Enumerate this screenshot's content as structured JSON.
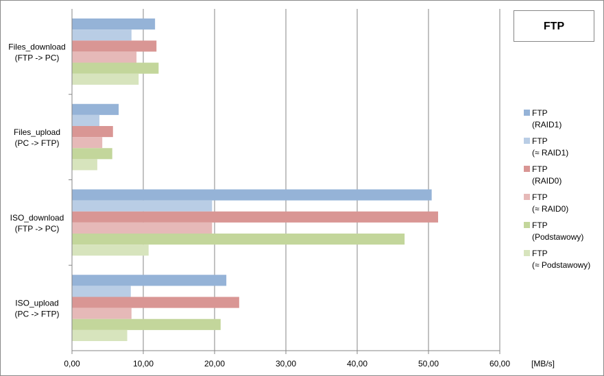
{
  "chart_data": {
    "type": "bar",
    "orientation": "horizontal",
    "title": "FTP",
    "xlabel": "[MB/s]",
    "ylabel": "",
    "xlim": [
      0,
      60
    ],
    "x_ticks": [
      "0,00",
      "10,00",
      "20,00",
      "30,00",
      "40,00",
      "50,00",
      "60,00"
    ],
    "grid": true,
    "legend_position": "right",
    "categories": [
      [
        "Files_download",
        "(FTP -> PC)"
      ],
      [
        "Files_upload",
        "(PC -> FTP)"
      ],
      [
        "ISO_download",
        "(FTP -> PC)"
      ],
      [
        "ISO_upload",
        "(PC -> FTP)"
      ]
    ],
    "series": [
      {
        "name": [
          "FTP",
          "(RAID1)"
        ],
        "color": "#95b3d7",
        "values": [
          11.6,
          6.5,
          50.4,
          21.6
        ]
      },
      {
        "name": [
          "FTP",
          "(≈  RAID1)"
        ],
        "color": "#b9cde5",
        "values": [
          8.3,
          3.8,
          19.6,
          8.2
        ]
      },
      {
        "name": [
          "FTP",
          "(RAID0)"
        ],
        "color": "#d99694",
        "values": [
          11.8,
          5.7,
          51.3,
          23.4
        ]
      },
      {
        "name": [
          "FTP",
          "(≈ RAID0)"
        ],
        "color": "#e6b9b8",
        "values": [
          9.0,
          4.2,
          19.6,
          8.3
        ]
      },
      {
        "name": [
          "FTP",
          "(Podstawowy)"
        ],
        "color": "#c3d69b",
        "values": [
          12.1,
          5.6,
          46.6,
          20.8
        ]
      },
      {
        "name": [
          "FTP",
          "(≈ Podstawowy)"
        ],
        "color": "#d7e4bd",
        "values": [
          9.3,
          3.5,
          10.7,
          7.7
        ]
      }
    ]
  }
}
